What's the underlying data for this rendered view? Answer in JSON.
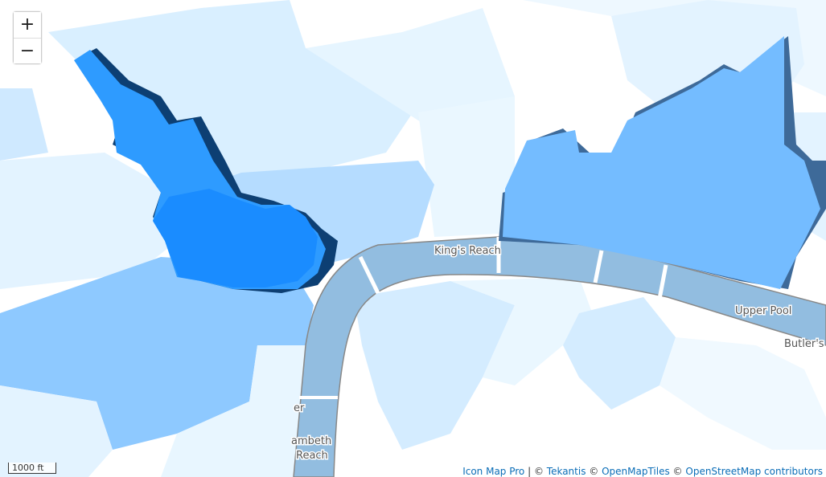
{
  "controls": {
    "zoom_in": "+",
    "zoom_out": "−"
  },
  "scale": "1000 ft",
  "labels": {
    "kings_reach": "King's Reach",
    "upper_pool": "Upper Pool",
    "butlers": "Butler's",
    "lambeth_1": "ambeth",
    "lambeth_2": "Reach",
    "partial": "er"
  },
  "attribution": {
    "icon_map_pro": "Icon Map Pro",
    "sep1": " | © ",
    "tekantis": "Tekantis",
    "sep2": " © ",
    "openmaptiles": "OpenMapTiles",
    "sep3": " © ",
    "osm": "OpenStreetMap contributors"
  },
  "colors": {
    "river": "#92bde0",
    "darkest": "#1a8cff",
    "dark": "#2e9bff",
    "mid": "#74bcff",
    "light": "#b5dcff",
    "lighter": "#d4ecff",
    "lightest": "#e8f6ff"
  }
}
